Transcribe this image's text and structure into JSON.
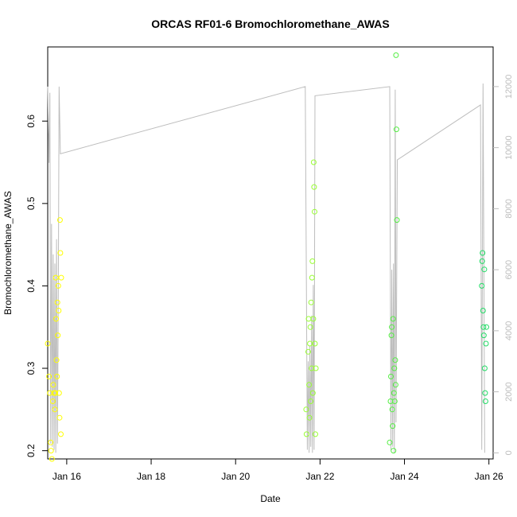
{
  "chart_data": {
    "type": "scatter",
    "title": "ORCAS RF01-6 Bromochloromethane_AWAS",
    "xlabel": "Date",
    "ylabel": "Bromochloromethane_AWAS",
    "x_ticks": [
      "Jan 16",
      "Jan 18",
      "Jan 20",
      "Jan 22",
      "Jan 24",
      "Jan 26"
    ],
    "x_tick_days": [
      16,
      18,
      20,
      22,
      24,
      26
    ],
    "xlim": [
      15.55,
      26.1
    ],
    "ylim": [
      0.19,
      0.69
    ],
    "y_ticks": [
      0.2,
      0.3,
      0.4,
      0.5,
      0.6
    ],
    "y2_ticks": [
      0,
      2000,
      4000,
      6000,
      8000,
      10000,
      12000
    ],
    "y2lim": [
      -200,
      13300
    ],
    "grid": false,
    "points": [
      {
        "x": 15.55,
        "y": 0.33
      },
      {
        "x": 15.58,
        "y": 0.29
      },
      {
        "x": 15.6,
        "y": 0.27
      },
      {
        "x": 15.62,
        "y": 0.21
      },
      {
        "x": 15.63,
        "y": 0.2
      },
      {
        "x": 15.65,
        "y": 0.19
      },
      {
        "x": 15.67,
        "y": 0.26
      },
      {
        "x": 15.68,
        "y": 0.28
      },
      {
        "x": 15.7,
        "y": 0.27
      },
      {
        "x": 15.72,
        "y": 0.25
      },
      {
        "x": 15.73,
        "y": 0.27
      },
      {
        "x": 15.74,
        "y": 0.41
      },
      {
        "x": 15.75,
        "y": 0.36
      },
      {
        "x": 15.76,
        "y": 0.31
      },
      {
        "x": 15.77,
        "y": 0.29
      },
      {
        "x": 15.78,
        "y": 0.38
      },
      {
        "x": 15.79,
        "y": 0.34
      },
      {
        "x": 15.8,
        "y": 0.4
      },
      {
        "x": 15.81,
        "y": 0.37
      },
      {
        "x": 15.82,
        "y": 0.27
      },
      {
        "x": 15.83,
        "y": 0.24
      },
      {
        "x": 15.84,
        "y": 0.48
      },
      {
        "x": 15.85,
        "y": 0.44
      },
      {
        "x": 15.86,
        "y": 0.22
      },
      {
        "x": 15.87,
        "y": 0.41
      },
      {
        "x": 21.67,
        "y": 0.25
      },
      {
        "x": 21.68,
        "y": 0.22
      },
      {
        "x": 21.72,
        "y": 0.32
      },
      {
        "x": 21.73,
        "y": 0.36
      },
      {
        "x": 21.74,
        "y": 0.28
      },
      {
        "x": 21.75,
        "y": 0.24
      },
      {
        "x": 21.76,
        "y": 0.33
      },
      {
        "x": 21.77,
        "y": 0.35
      },
      {
        "x": 21.78,
        "y": 0.26
      },
      {
        "x": 21.79,
        "y": 0.38
      },
      {
        "x": 21.8,
        "y": 0.3
      },
      {
        "x": 21.81,
        "y": 0.41
      },
      {
        "x": 21.82,
        "y": 0.43
      },
      {
        "x": 21.83,
        "y": 0.27
      },
      {
        "x": 21.84,
        "y": 0.36
      },
      {
        "x": 21.85,
        "y": 0.55
      },
      {
        "x": 21.86,
        "y": 0.52
      },
      {
        "x": 21.87,
        "y": 0.49
      },
      {
        "x": 21.88,
        "y": 0.33
      },
      {
        "x": 21.89,
        "y": 0.22
      },
      {
        "x": 21.9,
        "y": 0.3
      },
      {
        "x": 23.65,
        "y": 0.21
      },
      {
        "x": 23.67,
        "y": 0.26
      },
      {
        "x": 23.68,
        "y": 0.29
      },
      {
        "x": 23.69,
        "y": 0.34
      },
      {
        "x": 23.7,
        "y": 0.35
      },
      {
        "x": 23.71,
        "y": 0.25
      },
      {
        "x": 23.72,
        "y": 0.23
      },
      {
        "x": 23.73,
        "y": 0.36
      },
      {
        "x": 23.74,
        "y": 0.2
      },
      {
        "x": 23.75,
        "y": 0.27
      },
      {
        "x": 23.76,
        "y": 0.3
      },
      {
        "x": 23.77,
        "y": 0.26
      },
      {
        "x": 23.78,
        "y": 0.31
      },
      {
        "x": 23.79,
        "y": 0.28
      },
      {
        "x": 23.8,
        "y": 0.68
      },
      {
        "x": 23.81,
        "y": 0.59
      },
      {
        "x": 23.82,
        "y": 0.48
      },
      {
        "x": 25.83,
        "y": 0.4
      },
      {
        "x": 25.84,
        "y": 0.43
      },
      {
        "x": 25.85,
        "y": 0.44
      },
      {
        "x": 25.86,
        "y": 0.37
      },
      {
        "x": 25.87,
        "y": 0.35
      },
      {
        "x": 25.88,
        "y": 0.34
      },
      {
        "x": 25.89,
        "y": 0.42
      },
      {
        "x": 25.9,
        "y": 0.3
      },
      {
        "x": 25.91,
        "y": 0.27
      },
      {
        "x": 25.92,
        "y": 0.26
      },
      {
        "x": 25.93,
        "y": 0.33
      },
      {
        "x": 25.94,
        "y": 0.35
      }
    ],
    "altitude_line": [
      [
        15.55,
        12000
      ],
      [
        15.58,
        9500
      ],
      [
        15.6,
        11800
      ],
      [
        15.62,
        300
      ],
      [
        15.64,
        7500
      ],
      [
        15.66,
        200
      ],
      [
        15.68,
        6500
      ],
      [
        15.7,
        100
      ],
      [
        15.72,
        6200
      ],
      [
        15.74,
        0
      ],
      [
        15.76,
        7000
      ],
      [
        15.78,
        300
      ],
      [
        15.8,
        5000
      ],
      [
        15.82,
        12000
      ],
      [
        15.85,
        9800
      ],
      [
        21.65,
        12000
      ],
      [
        21.7,
        100
      ],
      [
        21.72,
        3000
      ],
      [
        21.74,
        0
      ],
      [
        21.76,
        3500
      ],
      [
        21.78,
        200
      ],
      [
        21.8,
        4500
      ],
      [
        21.82,
        0
      ],
      [
        21.84,
        5500
      ],
      [
        21.86,
        100
      ],
      [
        21.88,
        11700
      ],
      [
        23.65,
        12000
      ],
      [
        23.68,
        100
      ],
      [
        23.7,
        6000
      ],
      [
        23.72,
        200
      ],
      [
        23.74,
        6200
      ],
      [
        23.76,
        0
      ],
      [
        23.78,
        11900
      ],
      [
        23.8,
        1000
      ],
      [
        23.83,
        9600
      ],
      [
        25.8,
        11400
      ],
      [
        25.83,
        100
      ],
      [
        25.86,
        12100
      ],
      [
        25.9,
        0
      ]
    ],
    "colors": {
      "first_flight": "#ffff00",
      "second_flight": "#99ff33",
      "third_flight": "#55ee44",
      "last_flight": "#22dd66",
      "altitude_line": "#bdbdbd"
    }
  }
}
